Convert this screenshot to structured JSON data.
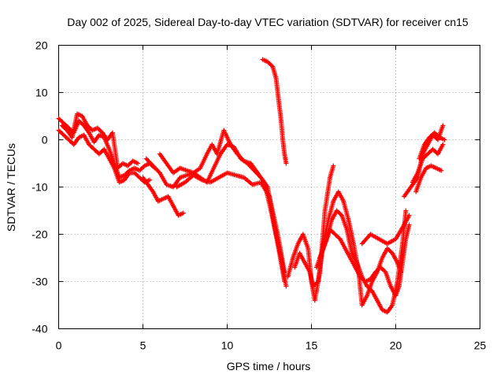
{
  "chart_data": {
    "type": "scatter",
    "title": "Day 002 of 2025, Sidereal Day-to-day VTEC variation (SDTVAR) for receiver cn15",
    "xlabel": "GPS time / hours",
    "ylabel": "SDTVAR / TECUs",
    "xlim": [
      0,
      25
    ],
    "ylim": [
      -40,
      20
    ],
    "xticks": [
      0,
      5,
      10,
      15,
      20,
      25
    ],
    "yticks": [
      -40,
      -30,
      -20,
      -10,
      0,
      10,
      20
    ],
    "grid": true,
    "marker": "+",
    "color": "#ff0000",
    "series": [
      {
        "name": "arc-early-a",
        "points": [
          [
            0,
            4.5
          ],
          [
            0.3,
            3.5
          ],
          [
            0.6,
            2.5
          ],
          [
            0.9,
            1.5
          ],
          [
            1.2,
            4
          ],
          [
            1.5,
            3
          ],
          [
            1.8,
            1.5
          ],
          [
            2.1,
            -0.5
          ],
          [
            2.4,
            1
          ],
          [
            2.7,
            0.5
          ],
          [
            3.0,
            -2
          ],
          [
            3.3,
            -5
          ],
          [
            3.6,
            -8
          ],
          [
            3.9,
            -7.5
          ],
          [
            4.2,
            -6.5
          ],
          [
            4.5,
            -6
          ],
          [
            4.8,
            -6.5
          ],
          [
            5.1,
            -5.5
          ],
          [
            5.4,
            -5
          ],
          [
            5.7,
            -6
          ]
        ]
      },
      {
        "name": "arc-early-b",
        "points": [
          [
            0,
            2
          ],
          [
            0.3,
            1
          ],
          [
            0.6,
            0
          ],
          [
            0.9,
            -1
          ],
          [
            1.2,
            0.5
          ],
          [
            1.5,
            1
          ],
          [
            1.8,
            -1
          ],
          [
            2.1,
            -2
          ],
          [
            2.4,
            -3
          ],
          [
            2.7,
            -2
          ],
          [
            3.0,
            -4
          ],
          [
            3.3,
            -6
          ],
          [
            3.6,
            -9
          ],
          [
            3.9,
            -8.5
          ],
          [
            4.2,
            -7
          ],
          [
            4.5,
            -7
          ],
          [
            4.8,
            -8
          ],
          [
            5.1,
            -9
          ],
          [
            5.4,
            -8.5
          ]
        ]
      },
      {
        "name": "arc-early-c",
        "points": [
          [
            0.2,
            3
          ],
          [
            0.5,
            2
          ],
          [
            0.8,
            0.5
          ],
          [
            1.1,
            5.5
          ],
          [
            1.4,
            5
          ],
          [
            1.7,
            3
          ],
          [
            2.0,
            2
          ],
          [
            2.3,
            2.5
          ],
          [
            2.6,
            1.5
          ],
          [
            2.9,
            0
          ],
          [
            3.2,
            1.5
          ],
          [
            3.5,
            -6
          ],
          [
            3.8,
            -5
          ],
          [
            4.1,
            -5.5
          ],
          [
            4.4,
            -4.5
          ],
          [
            4.7,
            -5
          ]
        ]
      },
      {
        "name": "arc-mid-a",
        "points": [
          [
            5.0,
            -8
          ],
          [
            5.3,
            -9.5
          ],
          [
            5.6,
            -11
          ],
          [
            5.9,
            -13
          ],
          [
            6.2,
            -12.5
          ],
          [
            6.5,
            -12
          ],
          [
            6.8,
            -14
          ],
          [
            7.1,
            -16
          ],
          [
            7.4,
            -15.5
          ]
        ]
      },
      {
        "name": "arc-mid-b",
        "points": [
          [
            5.2,
            -4
          ],
          [
            5.6,
            -5.5
          ],
          [
            6.0,
            -7
          ],
          [
            6.4,
            -9.5
          ],
          [
            6.8,
            -10
          ],
          [
            7.2,
            -8
          ],
          [
            7.6,
            -7.5
          ],
          [
            8.0,
            -7
          ],
          [
            8.4,
            -8
          ],
          [
            8.8,
            -9
          ],
          [
            9.2,
            -6
          ],
          [
            9.6,
            -3
          ],
          [
            10.0,
            -1
          ],
          [
            10.4,
            -1.5
          ],
          [
            10.8,
            -4
          ],
          [
            11.2,
            -5
          ],
          [
            11.6,
            -6.5
          ],
          [
            12.0,
            -8
          ],
          [
            12.4,
            -10
          ],
          [
            12.8,
            -18
          ],
          [
            13.2,
            -25
          ],
          [
            13.5,
            -31
          ]
        ]
      },
      {
        "name": "arc-mid-c",
        "points": [
          [
            6.0,
            -3
          ],
          [
            6.4,
            -5
          ],
          [
            6.8,
            -7
          ],
          [
            7.2,
            -6
          ],
          [
            7.6,
            -6.5
          ],
          [
            8.0,
            -7
          ],
          [
            8.4,
            -6
          ],
          [
            8.8,
            -3
          ],
          [
            9.1,
            -1
          ],
          [
            9.4,
            -3
          ],
          [
            9.8,
            2
          ],
          [
            10.2,
            -1
          ],
          [
            10.6,
            -3
          ],
          [
            11.0,
            -4.5
          ],
          [
            11.4,
            -5
          ],
          [
            11.8,
            -7
          ],
          [
            12.2,
            -9
          ],
          [
            12.6,
            -15
          ],
          [
            13.0,
            -22
          ],
          [
            13.4,
            -30
          ]
        ]
      },
      {
        "name": "arc-mid-d",
        "points": [
          [
            7.0,
            -10
          ],
          [
            7.5,
            -9
          ],
          [
            8.0,
            -7.5
          ],
          [
            8.5,
            -8.5
          ],
          [
            9.0,
            -9
          ],
          [
            9.5,
            -8
          ],
          [
            10.0,
            -7
          ],
          [
            10.5,
            -7.5
          ],
          [
            11.0,
            -8
          ],
          [
            11.5,
            -9.5
          ],
          [
            12.0,
            -9
          ],
          [
            12.5,
            -12
          ],
          [
            13.0,
            -20
          ],
          [
            13.4,
            -28
          ]
        ]
      },
      {
        "name": "arc-steep",
        "points": [
          [
            12.1,
            17
          ],
          [
            12.4,
            16.5
          ],
          [
            12.7,
            15.5
          ],
          [
            12.9,
            13
          ],
          [
            13.0,
            10
          ],
          [
            13.1,
            7
          ],
          [
            13.2,
            4
          ],
          [
            13.3,
            0
          ],
          [
            13.4,
            -3
          ],
          [
            13.5,
            -5
          ]
        ]
      },
      {
        "name": "arc-late-a",
        "points": [
          [
            13.6,
            -29
          ],
          [
            13.9,
            -25
          ],
          [
            14.2,
            -22
          ],
          [
            14.5,
            -20
          ],
          [
            14.8,
            -23
          ],
          [
            15.0,
            -30
          ],
          [
            15.2,
            -34
          ],
          [
            15.5,
            -28
          ],
          [
            15.8,
            -15
          ],
          [
            16.1,
            -8
          ],
          [
            16.3,
            -5.5
          ]
        ]
      },
      {
        "name": "arc-late-b",
        "points": [
          [
            14.0,
            -27
          ],
          [
            14.3,
            -24
          ],
          [
            14.6,
            -26
          ],
          [
            14.9,
            -28
          ],
          [
            15.1,
            -31
          ],
          [
            15.4,
            -30
          ],
          [
            15.7,
            -22
          ],
          [
            16.0,
            -17
          ],
          [
            16.3,
            -13
          ],
          [
            16.6,
            -11
          ],
          [
            16.9,
            -13
          ],
          [
            17.2,
            -17
          ],
          [
            17.5,
            -22
          ],
          [
            17.8,
            -28
          ],
          [
            18.0,
            -35
          ],
          [
            18.3,
            -33
          ],
          [
            18.6,
            -30
          ],
          [
            18.9,
            -28
          ],
          [
            19.2,
            -25
          ],
          [
            19.5,
            -23
          ],
          [
            19.8,
            -24
          ],
          [
            20.1,
            -26
          ],
          [
            20.3,
            -28
          ]
        ]
      },
      {
        "name": "arc-late-c",
        "points": [
          [
            15.3,
            -27
          ],
          [
            15.6,
            -24
          ],
          [
            15.9,
            -21
          ],
          [
            16.2,
            -17
          ],
          [
            16.5,
            -15
          ],
          [
            16.8,
            -16
          ],
          [
            17.1,
            -19
          ],
          [
            17.4,
            -24
          ],
          [
            17.7,
            -26
          ],
          [
            18.0,
            -29
          ],
          [
            18.3,
            -31
          ],
          [
            18.6,
            -32
          ],
          [
            18.9,
            -34
          ],
          [
            19.2,
            -36
          ],
          [
            19.5,
            -36.5
          ],
          [
            19.8,
            -35
          ],
          [
            20.1,
            -30
          ],
          [
            20.4,
            -22
          ],
          [
            20.6,
            -15
          ]
        ]
      },
      {
        "name": "arc-late-d",
        "points": [
          [
            15.5,
            -25
          ],
          [
            15.8,
            -22
          ],
          [
            16.1,
            -19
          ],
          [
            16.4,
            -20
          ],
          [
            16.7,
            -21
          ],
          [
            17.0,
            -23
          ],
          [
            17.3,
            -25
          ],
          [
            17.6,
            -27
          ],
          [
            17.9,
            -29
          ],
          [
            18.2,
            -30
          ],
          [
            18.5,
            -29.5
          ],
          [
            18.8,
            -28
          ],
          [
            19.1,
            -27
          ],
          [
            19.4,
            -28
          ],
          [
            19.7,
            -31
          ],
          [
            20.0,
            -33
          ],
          [
            20.2,
            -31
          ],
          [
            20.4,
            -26
          ],
          [
            20.6,
            -21
          ],
          [
            20.8,
            -18
          ]
        ]
      },
      {
        "name": "arc-late-e",
        "points": [
          [
            18.0,
            -22
          ],
          [
            18.5,
            -20
          ],
          [
            19.0,
            -21
          ],
          [
            19.5,
            -22
          ],
          [
            20.0,
            -21
          ],
          [
            20.5,
            -18
          ],
          [
            20.8,
            -16
          ]
        ]
      },
      {
        "name": "arc-end-a",
        "points": [
          [
            20.5,
            -12
          ],
          [
            20.9,
            -10
          ],
          [
            21.3,
            -8
          ],
          [
            21.6,
            -3
          ],
          [
            21.9,
            -1
          ],
          [
            22.2,
            1
          ],
          [
            22.5,
            0
          ],
          [
            22.8,
            3
          ]
        ]
      },
      {
        "name": "arc-end-b",
        "points": [
          [
            21.0,
            -9
          ],
          [
            21.3,
            -7
          ],
          [
            21.6,
            -4
          ],
          [
            21.9,
            -3
          ],
          [
            22.2,
            -2
          ],
          [
            22.5,
            -3
          ],
          [
            22.8,
            -1
          ]
        ]
      },
      {
        "name": "arc-end-c",
        "points": [
          [
            21.2,
            -11
          ],
          [
            21.5,
            -8
          ],
          [
            21.8,
            -6
          ],
          [
            22.1,
            -5.5
          ],
          [
            22.4,
            -6
          ],
          [
            22.7,
            -6.5
          ]
        ]
      },
      {
        "name": "arc-end-d",
        "points": [
          [
            21.4,
            -4
          ],
          [
            21.7,
            -1
          ],
          [
            22.0,
            0.5
          ],
          [
            22.3,
            1.5
          ],
          [
            22.6,
            0.5
          ],
          [
            22.9,
            0
          ]
        ]
      }
    ]
  }
}
